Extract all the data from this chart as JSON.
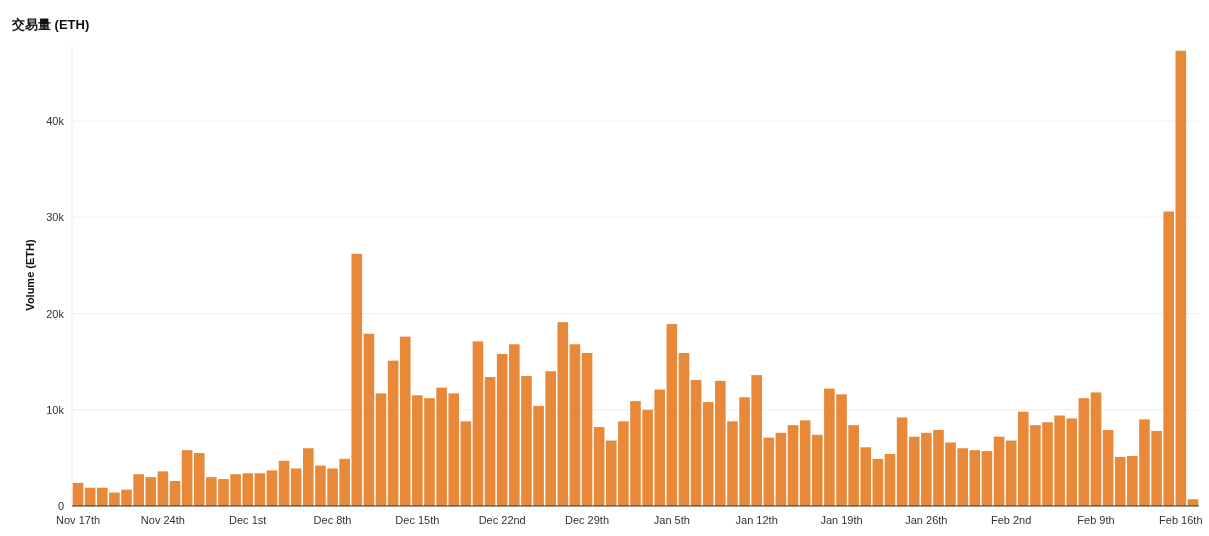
{
  "chart_data": {
    "type": "bar",
    "title": "交易量 (ETH)",
    "ylabel": "Volume (ETH)",
    "categories": [
      "Nov 17th",
      null,
      null,
      null,
      null,
      null,
      null,
      "Nov 24th",
      null,
      null,
      null,
      null,
      null,
      null,
      "Dec 1st",
      null,
      null,
      null,
      null,
      null,
      null,
      "Dec 8th",
      null,
      null,
      null,
      null,
      null,
      null,
      "Dec 15th",
      null,
      null,
      null,
      null,
      null,
      null,
      "Dec 22nd",
      null,
      null,
      null,
      null,
      null,
      null,
      "Dec 29th",
      null,
      null,
      null,
      null,
      null,
      null,
      "Jan 5th",
      null,
      null,
      null,
      null,
      null,
      null,
      "Jan 12th",
      null,
      null,
      null,
      null,
      null,
      null,
      "Jan 19th",
      null,
      null,
      null,
      null,
      null,
      null,
      "Jan 26th",
      null,
      null,
      null,
      null,
      null,
      null,
      "Feb 2nd",
      null,
      null,
      null,
      null,
      null,
      null,
      "Feb 9th",
      null,
      null,
      null,
      null,
      null,
      null,
      "Feb 16th",
      null
    ],
    "values": [
      2400,
      1900,
      1900,
      1400,
      1700,
      3300,
      3000,
      3600,
      2600,
      5800,
      5500,
      3000,
      2800,
      3300,
      3400,
      3400,
      3700,
      4700,
      3900,
      6000,
      4200,
      3900,
      4900,
      26200,
      17900,
      11700,
      15100,
      17600,
      11500,
      11200,
      12300,
      11700,
      8800,
      17100,
      13400,
      15800,
      16800,
      13500,
      10400,
      14000,
      19100,
      16800,
      15900,
      8200,
      6800,
      8800,
      10900,
      10000,
      12100,
      18900,
      15900,
      13100,
      10800,
      13000,
      8800,
      11300,
      13600,
      7100,
      7600,
      8400,
      8900,
      7400,
      12200,
      11600,
      8400,
      6100,
      4900,
      5400,
      9200,
      7200,
      7600,
      7900,
      6600,
      6000,
      5800,
      5700,
      7200,
      6800,
      9800,
      8400,
      8700,
      9400,
      9100,
      11200,
      11800,
      7900,
      5100,
      5200,
      9000,
      7800,
      30600,
      47300,
      700
    ],
    "color": "#e8893a",
    "ylim": [
      0,
      48000
    ],
    "yticks": [
      0,
      {
        "value": 10000,
        "label": "10k"
      },
      {
        "value": 20000,
        "label": "20k"
      },
      {
        "value": 30000,
        "label": "30k"
      },
      {
        "value": 40000,
        "label": "40k"
      }
    ],
    "grid": "y"
  }
}
